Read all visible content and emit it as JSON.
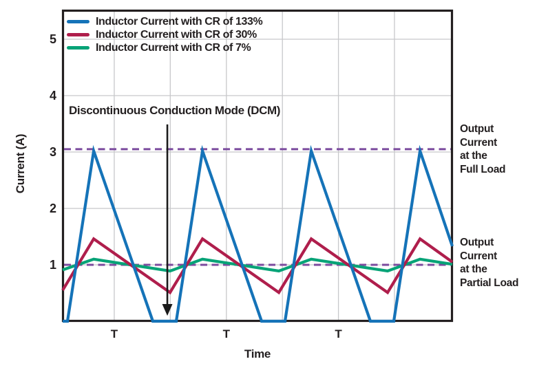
{
  "chart_data": {
    "type": "line",
    "title": "",
    "xlabel": "Time",
    "ylabel": "Current (A)",
    "ylim": [
      0,
      5.5
    ],
    "xlim_periods": [
      -0.044,
      3.538
    ],
    "grid": true,
    "legend_position": "top-left",
    "y_ticks": [
      1,
      2,
      3,
      4,
      5
    ],
    "x_gridlines_periods": [
      0.43,
      0.945,
      1.461,
      1.976,
      2.491,
      3.006
    ],
    "x_ticks": {
      "label": "T",
      "positions_periods": [
        0.43,
        1.461,
        2.491
      ]
    },
    "series": [
      {
        "name": "Inductor Current with CR of 133%",
        "color": "#1573B8",
        "points_T_A": [
          [
            -0.044,
            0
          ],
          [
            0,
            0
          ],
          [
            0.241,
            3.02
          ],
          [
            0.785,
            0
          ],
          [
            1,
            0
          ],
          [
            1.241,
            3.02
          ],
          [
            1.785,
            0
          ],
          [
            2,
            0
          ],
          [
            2.241,
            3.02
          ],
          [
            2.785,
            0
          ],
          [
            3,
            0
          ],
          [
            3.241,
            3.02
          ],
          [
            3.538,
            1.33
          ]
        ]
      },
      {
        "name": "Inductor Current with CR of 30%",
        "color": "#AF1E4C",
        "points_T_A": [
          [
            -0.044,
            0.55
          ],
          [
            0.241,
            1.46
          ],
          [
            0.943,
            0.51
          ],
          [
            1.241,
            1.46
          ],
          [
            1.943,
            0.51
          ],
          [
            2.241,
            1.46
          ],
          [
            2.943,
            0.51
          ],
          [
            3.241,
            1.46
          ],
          [
            3.538,
            1.05
          ]
        ]
      },
      {
        "name": "Inductor Current with CR of 7%",
        "color": "#07A377",
        "points_T_A": [
          [
            -0.044,
            0.91
          ],
          [
            0.241,
            1.1
          ],
          [
            0.943,
            0.89
          ],
          [
            1.241,
            1.1
          ],
          [
            1.943,
            0.89
          ],
          [
            2.241,
            1.1
          ],
          [
            2.943,
            0.89
          ],
          [
            3.241,
            1.1
          ],
          [
            3.538,
            1.01
          ]
        ]
      }
    ],
    "reference_lines": [
      {
        "label": "Output\nCurrent\nat the\nFull Load",
        "value_A": 3.05,
        "color": "#7B4A9E",
        "style": "dashed"
      },
      {
        "label": "Output\nCurrent\nat the\nPartial Load",
        "value_A": 1.0,
        "color": "#7B4A9E",
        "style": "dashed"
      }
    ],
    "annotations": [
      {
        "text": "Discontinuous Conduction Mode (DCM)",
        "arrow_t": 0.918,
        "arrow_from_A": 3.49,
        "arrow_to_A": 0.28
      }
    ],
    "colors": {
      "axis_and_text": "#231F20",
      "gridline": "#C7C8CA",
      "arrow": "#1A1A1A"
    }
  }
}
